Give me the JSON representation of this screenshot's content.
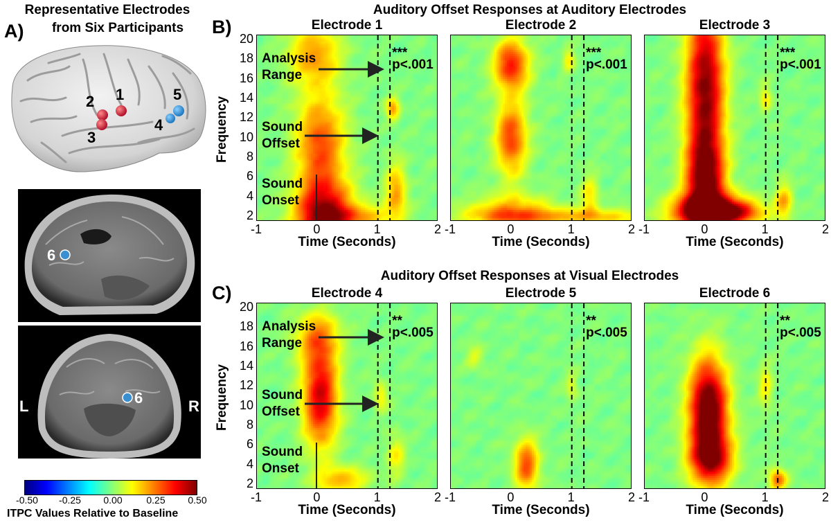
{
  "figure": {
    "panel_a": {
      "label": "A)",
      "title_line1": "Representative Electrodes",
      "title_line2": "from Six Participants",
      "brain_electrodes": [
        "1",
        "2",
        "3",
        "4",
        "5"
      ],
      "mri_electrode": "6",
      "left_label": "L",
      "right_label": "R",
      "colorbar": {
        "ticks": [
          "-0.50",
          "-0.25",
          "0.00",
          "0.25",
          "0.50"
        ],
        "label": "ITPC Values Relative to Baseline"
      }
    },
    "panel_b": {
      "label": "B)",
      "title": "Auditory Offset Responses at Auditory Electrodes",
      "significance_stars": "***",
      "significance_p": "p<.001"
    },
    "panel_c": {
      "label": "C)",
      "title": "Auditory Offset Responses at Visual Electrodes",
      "significance_stars": "**",
      "significance_p": "p<.005"
    },
    "annotations": {
      "analysis_line1": "Analysis",
      "analysis_line2": "Range",
      "offset_line1": "Sound",
      "offset_line2": "Offset",
      "onset_line1": "Sound",
      "onset_line2": "Onset"
    }
  },
  "chart_data": [
    {
      "type": "heatmap",
      "title": "Electrode 1",
      "xlabel": "Time (Seconds)",
      "ylabel": "Frequency",
      "xlim": [
        -1,
        2
      ],
      "ylim": [
        1.5,
        20.5
      ],
      "x_ticks": [
        "-1",
        "0",
        "1",
        "2"
      ],
      "y_ticks": [
        "2",
        "4",
        "6",
        "8",
        "10",
        "12",
        "14",
        "16",
        "18",
        "20"
      ],
      "clim": [
        -0.5,
        0.5
      ],
      "vlines": [
        1.0,
        1.2
      ],
      "blobs": [
        {
          "t": 0.1,
          "f": 2.0,
          "st": 0.32,
          "sf": 2.6,
          "v": 0.48
        },
        {
          "t": 0.05,
          "f": 9.5,
          "st": 0.28,
          "sf": 3.4,
          "v": 0.3
        },
        {
          "t": -0.05,
          "f": 18.5,
          "st": 0.3,
          "sf": 2.2,
          "v": 0.22
        },
        {
          "t": 1.25,
          "f": 13.0,
          "st": 0.08,
          "sf": 0.8,
          "v": 0.22
        },
        {
          "t": 1.3,
          "f": 4.5,
          "st": 0.12,
          "sf": 2.0,
          "v": 0.22
        },
        {
          "t": 0.7,
          "f": 2.0,
          "st": 0.4,
          "sf": 0.9,
          "v": 0.18
        }
      ]
    },
    {
      "type": "heatmap",
      "title": "Electrode 2",
      "xlabel": "Time (Seconds)",
      "ylabel": "",
      "xlim": [
        -1,
        2
      ],
      "ylim": [
        1.5,
        20.5
      ],
      "x_ticks": [
        "-1",
        "0",
        "1",
        "2"
      ],
      "y_ticks": [],
      "clim": [
        -0.5,
        0.5
      ],
      "vlines": [
        1.0,
        1.2
      ],
      "blobs": [
        {
          "t": 0.0,
          "f": 17.5,
          "st": 0.2,
          "sf": 1.8,
          "v": 0.36
        },
        {
          "t": 0.0,
          "f": 10.0,
          "st": 0.18,
          "sf": 2.6,
          "v": 0.32
        },
        {
          "t": 0.0,
          "f": 2.5,
          "st": 0.45,
          "sf": 1.2,
          "v": 0.22
        },
        {
          "t": 1.0,
          "f": 2.0,
          "st": 1.2,
          "sf": 0.6,
          "v": 0.18
        },
        {
          "t": 0.95,
          "f": 18.0,
          "st": 0.07,
          "sf": 0.8,
          "v": 0.14
        },
        {
          "t": 1.3,
          "f": 4.0,
          "st": 0.1,
          "sf": 1.5,
          "v": 0.15
        }
      ]
    },
    {
      "type": "heatmap",
      "title": "Electrode 3",
      "xlabel": "Time (Seconds)",
      "ylabel": "",
      "xlim": [
        -1,
        2
      ],
      "ylim": [
        1.5,
        20.5
      ],
      "x_ticks": [
        "-1",
        "0",
        "1",
        "2"
      ],
      "y_ticks": [],
      "clim": [
        -0.5,
        0.5
      ],
      "vlines": [
        1.0,
        1.2
      ],
      "blobs": [
        {
          "t": 0.0,
          "f": 15.0,
          "st": 0.22,
          "sf": 6.5,
          "v": 0.5
        },
        {
          "t": 0.0,
          "f": 5.5,
          "st": 0.22,
          "sf": 3.0,
          "v": 0.42
        },
        {
          "t": 0.05,
          "f": 2.5,
          "st": 0.4,
          "sf": 1.2,
          "v": 0.6
        },
        {
          "t": 0.6,
          "f": 2.5,
          "st": 0.3,
          "sf": 0.8,
          "v": 0.22
        },
        {
          "t": 1.3,
          "f": 3.5,
          "st": 0.1,
          "sf": 1.3,
          "v": 0.2
        },
        {
          "t": 1.0,
          "f": 14.0,
          "st": 0.07,
          "sf": 1.0,
          "v": 0.14
        }
      ]
    },
    {
      "type": "heatmap",
      "title": "Electrode 4",
      "xlabel": "Time (Seconds)",
      "ylabel": "Frequency",
      "xlim": [
        -1,
        2
      ],
      "ylim": [
        1.5,
        20.5
      ],
      "x_ticks": [
        "-1",
        "0",
        "1",
        "2"
      ],
      "y_ticks": [
        "2",
        "4",
        "6",
        "8",
        "10",
        "12",
        "14",
        "16",
        "18",
        "20"
      ],
      "clim": [
        -0.5,
        0.5
      ],
      "vlines": [
        1.0,
        1.2
      ],
      "blobs": [
        {
          "t": 0.05,
          "f": 11.0,
          "st": 0.2,
          "sf": 3.6,
          "v": 0.42
        },
        {
          "t": 0.0,
          "f": 17.0,
          "st": 0.25,
          "sf": 1.8,
          "v": 0.2
        },
        {
          "t": 0.4,
          "f": 2.5,
          "st": 0.3,
          "sf": 0.9,
          "v": 0.2
        },
        {
          "t": 1.05,
          "f": 11.0,
          "st": 0.08,
          "sf": 1.0,
          "v": 0.14
        },
        {
          "t": 1.3,
          "f": 5.0,
          "st": 0.1,
          "sf": 1.4,
          "v": 0.14
        }
      ]
    },
    {
      "type": "heatmap",
      "title": "Electrode 5",
      "xlabel": "Time (Seconds)",
      "ylabel": "",
      "xlim": [
        -1,
        2
      ],
      "ylim": [
        1.5,
        20.5
      ],
      "x_ticks": [
        "-1",
        "0",
        "1",
        "2"
      ],
      "y_ticks": [],
      "clim": [
        -0.5,
        0.5
      ],
      "vlines": [
        1.0,
        1.2
      ],
      "blobs": [
        {
          "t": 0.25,
          "f": 4.0,
          "st": 0.14,
          "sf": 1.8,
          "v": 0.3
        },
        {
          "t": 1.0,
          "f": 12.0,
          "st": 0.07,
          "sf": 1.0,
          "v": 0.1
        },
        {
          "t": -0.6,
          "f": 15.0,
          "st": 0.1,
          "sf": 0.8,
          "v": 0.1
        }
      ]
    },
    {
      "type": "heatmap",
      "title": "Electrode 6",
      "xlabel": "Time (Seconds)",
      "ylabel": "",
      "xlim": [
        -1,
        2
      ],
      "ylim": [
        1.5,
        20.5
      ],
      "x_ticks": [
        "-1",
        "0",
        "1",
        "2"
      ],
      "y_ticks": [],
      "clim": [
        -0.5,
        0.5
      ],
      "vlines": [
        1.0,
        1.2
      ],
      "blobs": [
        {
          "t": 0.05,
          "f": 9.5,
          "st": 0.22,
          "sf": 3.6,
          "v": 0.6
        },
        {
          "t": 0.1,
          "f": 4.5,
          "st": 0.25,
          "sf": 1.8,
          "v": 0.35
        },
        {
          "t": 1.2,
          "f": 2.5,
          "st": 0.1,
          "sf": 0.8,
          "v": 0.28
        },
        {
          "t": 1.0,
          "f": 12.0,
          "st": 0.08,
          "sf": 1.5,
          "v": 0.14
        }
      ]
    }
  ]
}
